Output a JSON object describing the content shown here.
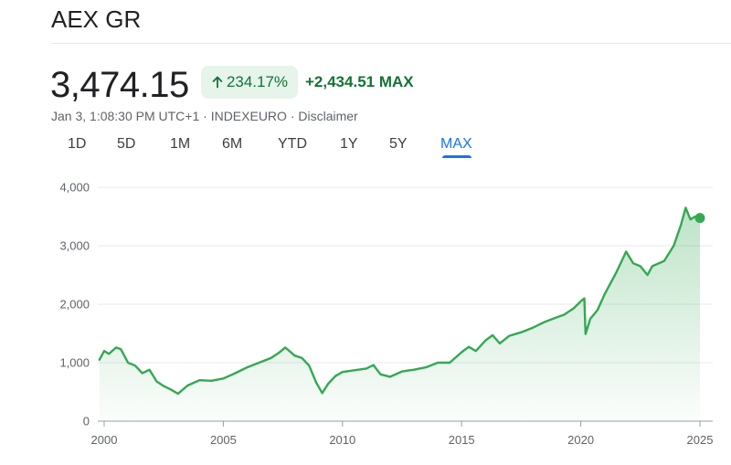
{
  "header": {
    "title": "AEX GR"
  },
  "quote": {
    "price": "3,474.15",
    "percent_change": "234.17%",
    "abs_change": "+2,434.51 MAX",
    "meta": "Jan 3, 1:08:30 PM UTC+1 · INDEXEURO · Disclaimer",
    "positive_color": "#137333",
    "badge_bg": "#e6f4ea"
  },
  "tabs": [
    {
      "label": "1D",
      "active": false
    },
    {
      "label": "5D",
      "active": false
    },
    {
      "label": "1M",
      "active": false
    },
    {
      "label": "6M",
      "active": false
    },
    {
      "label": "YTD",
      "active": false
    },
    {
      "label": "1Y",
      "active": false
    },
    {
      "label": "5Y",
      "active": false
    },
    {
      "label": "MAX",
      "active": true
    }
  ],
  "chart_data": {
    "type": "area",
    "title": "",
    "xlabel": "",
    "ylabel": "",
    "line_color": "#34a853",
    "accent_color": "#1a73e8",
    "xlim": [
      1999.75,
      2025.1
    ],
    "ylim": [
      0,
      4000
    ],
    "y_ticks": [
      0,
      1000,
      2000,
      3000,
      4000
    ],
    "y_tick_labels": [
      "0",
      "1,000",
      "2,000",
      "3,000",
      "4,000"
    ],
    "x_ticks": [
      2000,
      2005,
      2010,
      2015,
      2020,
      2025
    ],
    "x_tick_labels": [
      "2000",
      "2005",
      "2010",
      "2015",
      "2020",
      "2025"
    ],
    "grid": true,
    "series": [
      {
        "x": [
          1999.8,
          2000.0,
          2000.2,
          2000.5,
          2000.7,
          2001.0,
          2001.3,
          2001.6,
          2001.9,
          2002.2,
          2002.5,
          2002.8,
          2003.1,
          2003.5,
          2004.0,
          2004.5,
          2005.0,
          2005.5,
          2006.0,
          2006.5,
          2007.0,
          2007.3,
          2007.6,
          2008.0,
          2008.3,
          2008.6,
          2008.9,
          2009.15,
          2009.4,
          2009.7,
          2010.0,
          2010.5,
          2011.0,
          2011.3,
          2011.6,
          2012.0,
          2012.5,
          2013.0,
          2013.5,
          2014.0,
          2014.5,
          2015.0,
          2015.3,
          2015.6,
          2016.0,
          2016.3,
          2016.6,
          2017.0,
          2017.5,
          2018.0,
          2018.5,
          2018.95,
          2019.3,
          2019.7,
          2020.0,
          2020.15,
          2020.2,
          2020.4,
          2020.7,
          2021.0,
          2021.5,
          2021.9,
          2022.2,
          2022.5,
          2022.8,
          2023.0,
          2023.5,
          2023.9,
          2024.2,
          2024.4,
          2024.6,
          2024.8,
          2025.0
        ],
        "y": [
          1050,
          1200,
          1150,
          1260,
          1230,
          1000,
          950,
          820,
          880,
          680,
          600,
          540,
          470,
          610,
          700,
          690,
          730,
          820,
          920,
          1000,
          1080,
          1160,
          1260,
          1120,
          1080,
          950,
          660,
          480,
          640,
          770,
          840,
          870,
          900,
          960,
          800,
          760,
          850,
          880,
          920,
          1000,
          1000,
          1180,
          1270,
          1200,
          1380,
          1470,
          1330,
          1460,
          1520,
          1600,
          1700,
          1770,
          1820,
          1930,
          2050,
          2100,
          1490,
          1750,
          1900,
          2170,
          2550,
          2900,
          2700,
          2650,
          2500,
          2650,
          2740,
          3000,
          3350,
          3650,
          3450,
          3500,
          3474
        ]
      }
    ]
  }
}
